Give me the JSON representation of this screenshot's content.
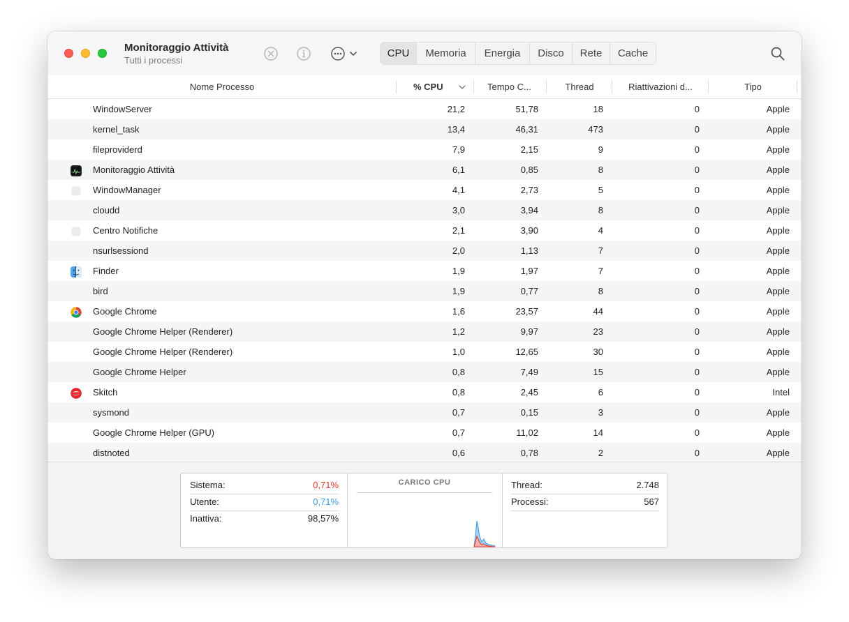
{
  "window": {
    "title": "Monitoraggio Attività",
    "subtitle": "Tutti i processi"
  },
  "toolbar": {
    "tabs": [
      {
        "label": "CPU",
        "active": true
      },
      {
        "label": "Memoria",
        "active": false
      },
      {
        "label": "Energia",
        "active": false
      },
      {
        "label": "Disco",
        "active": false
      },
      {
        "label": "Rete",
        "active": false
      },
      {
        "label": "Cache",
        "active": false
      }
    ],
    "icons": {
      "stop": "stop-process-icon",
      "info": "info-icon",
      "more": "more-options-icon",
      "search": "search-icon"
    }
  },
  "columns": {
    "name": "Nome Processo",
    "cpu": "% CPU",
    "time": "Tempo C...",
    "thread": "Thread",
    "wake": "Riattivazioni d...",
    "type": "Tipo"
  },
  "rows": [
    {
      "name": "WindowServer",
      "cpu": "21,2",
      "time": "51,78",
      "thread": "18",
      "wake": "0",
      "type": "Apple",
      "icon": "none"
    },
    {
      "name": "kernel_task",
      "cpu": "13,4",
      "time": "46,31",
      "thread": "473",
      "wake": "0",
      "type": "Apple",
      "icon": "none"
    },
    {
      "name": "fileproviderd",
      "cpu": "7,9",
      "time": "2,15",
      "thread": "9",
      "wake": "0",
      "type": "Apple",
      "icon": "none"
    },
    {
      "name": "Monitoraggio Attività",
      "cpu": "6,1",
      "time": "0,85",
      "thread": "8",
      "wake": "0",
      "type": "Apple",
      "icon": "activity-monitor-icon"
    },
    {
      "name": "WindowManager",
      "cpu": "4,1",
      "time": "2,73",
      "thread": "5",
      "wake": "0",
      "type": "Apple",
      "icon": "generic-app-icon"
    },
    {
      "name": "cloudd",
      "cpu": "3,0",
      "time": "3,94",
      "thread": "8",
      "wake": "0",
      "type": "Apple",
      "icon": "none"
    },
    {
      "name": "Centro Notifiche",
      "cpu": "2,1",
      "time": "3,90",
      "thread": "4",
      "wake": "0",
      "type": "Apple",
      "icon": "generic-app-icon"
    },
    {
      "name": "nsurlsessiond",
      "cpu": "2,0",
      "time": "1,13",
      "thread": "7",
      "wake": "0",
      "type": "Apple",
      "icon": "none"
    },
    {
      "name": "Finder",
      "cpu": "1,9",
      "time": "1,97",
      "thread": "7",
      "wake": "0",
      "type": "Apple",
      "icon": "finder-icon"
    },
    {
      "name": "bird",
      "cpu": "1,9",
      "time": "0,77",
      "thread": "8",
      "wake": "0",
      "type": "Apple",
      "icon": "none"
    },
    {
      "name": "Google Chrome",
      "cpu": "1,6",
      "time": "23,57",
      "thread": "44",
      "wake": "0",
      "type": "Apple",
      "icon": "chrome-icon"
    },
    {
      "name": "Google Chrome Helper (Renderer)",
      "cpu": "1,2",
      "time": "9,97",
      "thread": "23",
      "wake": "0",
      "type": "Apple",
      "icon": "none"
    },
    {
      "name": "Google Chrome Helper (Renderer)",
      "cpu": "1,0",
      "time": "12,65",
      "thread": "30",
      "wake": "0",
      "type": "Apple",
      "icon": "none"
    },
    {
      "name": "Google Chrome Helper",
      "cpu": "0,8",
      "time": "7,49",
      "thread": "15",
      "wake": "0",
      "type": "Apple",
      "icon": "none"
    },
    {
      "name": "Skitch",
      "cpu": "0,8",
      "time": "2,45",
      "thread": "6",
      "wake": "0",
      "type": "Intel",
      "icon": "skitch-icon"
    },
    {
      "name": "sysmond",
      "cpu": "0,7",
      "time": "0,15",
      "thread": "3",
      "wake": "0",
      "type": "Apple",
      "icon": "none"
    },
    {
      "name": "Google Chrome Helper (GPU)",
      "cpu": "0,7",
      "time": "11,02",
      "thread": "14",
      "wake": "0",
      "type": "Apple",
      "icon": "none"
    },
    {
      "name": "distnoted",
      "cpu": "0,6",
      "time": "0,78",
      "thread": "2",
      "wake": "0",
      "type": "Apple",
      "icon": "none"
    }
  ],
  "stats": {
    "system_label": "Sistema:",
    "system_value": "0,71%",
    "system_color": "#e0332b",
    "user_label": "Utente:",
    "user_value": "0,71%",
    "user_color": "#3a9ee6",
    "idle_label": "Inattiva:",
    "idle_value": "98,57%",
    "chart_title": "CARICO CPU",
    "threads_label": "Thread:",
    "threads_value": "2.748",
    "processes_label": "Processi:",
    "processes_value": "567"
  }
}
